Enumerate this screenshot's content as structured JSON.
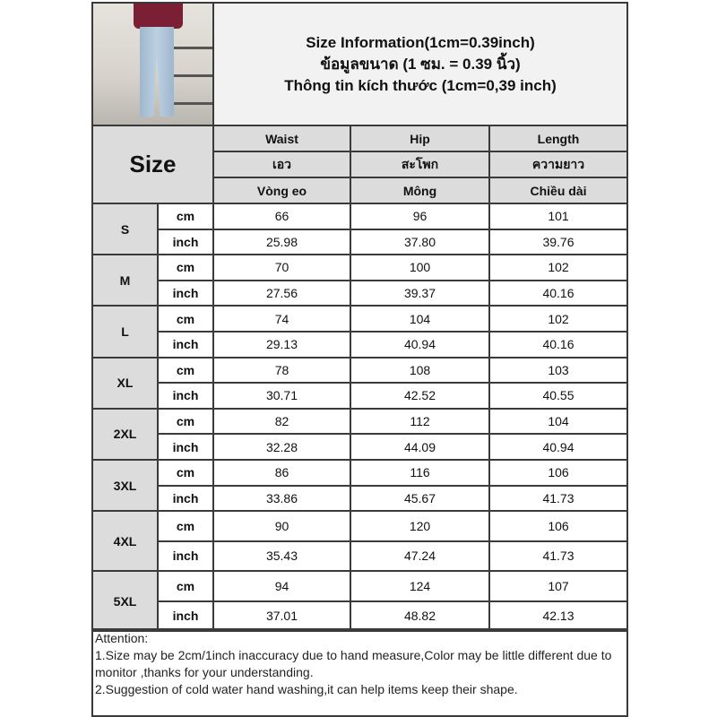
{
  "title_lines": [
    "Size Information(1cm=0.39inch)",
    "ข้อมูลขนาด (1 ซม. = 0.39 นิ้ว)",
    "Thông tin kích thước (1cm=0,39 inch)"
  ],
  "size_header": "Size",
  "columns": [
    {
      "en": "Waist",
      "th": "เอว",
      "vi": "Vòng eo"
    },
    {
      "en": "Hip",
      "th": "สะโพก",
      "vi": "Mông"
    },
    {
      "en": "Length",
      "th": "ความยาว",
      "vi": "Chiều dài"
    }
  ],
  "units": {
    "cm": "cm",
    "inch": "inch"
  },
  "rows": [
    {
      "size": "S",
      "cm": [
        "66",
        "96",
        "101"
      ],
      "inch": [
        "25.98",
        "37.80",
        "39.76"
      ]
    },
    {
      "size": "M",
      "cm": [
        "70",
        "100",
        "102"
      ],
      "inch": [
        "27.56",
        "39.37",
        "40.16"
      ]
    },
    {
      "size": "L",
      "cm": [
        "74",
        "104",
        "102"
      ],
      "inch": [
        "29.13",
        "40.94",
        "40.16"
      ]
    },
    {
      "size": "XL",
      "cm": [
        "78",
        "108",
        "103"
      ],
      "inch": [
        "30.71",
        "42.52",
        "40.55"
      ]
    },
    {
      "size": "2XL",
      "cm": [
        "82",
        "112",
        "104"
      ],
      "inch": [
        "32.28",
        "44.09",
        "40.94"
      ]
    },
    {
      "size": "3XL",
      "cm": [
        "86",
        "116",
        "106"
      ],
      "inch": [
        "33.86",
        "45.67",
        "41.73"
      ]
    },
    {
      "size": "4XL",
      "cm": [
        "90",
        "120",
        "106"
      ],
      "inch": [
        "35.43",
        "47.24",
        "41.73"
      ]
    },
    {
      "size": "5XL",
      "cm": [
        "94",
        "124",
        "107"
      ],
      "inch": [
        "37.01",
        "48.82",
        "42.13"
      ]
    }
  ],
  "attention": {
    "heading": "Attention:",
    "line1": "1.Size may be 2cm/1inch inaccuracy due to hand measure,Color may be little different due to monitor ,thanks for your understanding.",
    "line2": "2.Suggestion of cold water hand washing,it can help items keep their shape."
  }
}
